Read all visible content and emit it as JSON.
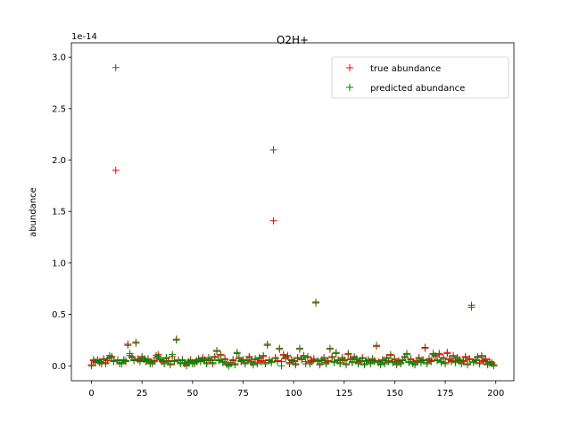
{
  "chart_data": {
    "type": "scatter",
    "title": "O2H+",
    "ylabel": "abundance",
    "y_offset_label": "1e-14",
    "legend_loc": "upper right",
    "xlim": [
      -9.95,
      208.95
    ],
    "xticks": [
      0,
      25,
      50,
      75,
      100,
      125,
      150,
      175,
      200
    ],
    "ylim": [
      -0.145,
      3.14
    ],
    "yticks": [
      {
        "value": 0,
        "label": "0.0"
      },
      {
        "value": 0.5,
        "label": "0.5"
      },
      {
        "value": 1,
        "label": "1.0"
      },
      {
        "value": 1.5,
        "label": "1.5"
      },
      {
        "value": 2,
        "label": "2.0"
      },
      {
        "value": 2.5,
        "label": "2.5"
      },
      {
        "value": 3,
        "label": "3.0"
      }
    ],
    "x": [
      0,
      1,
      2,
      3,
      4,
      5,
      6,
      7,
      8,
      9,
      10,
      11,
      12,
      13,
      14,
      15,
      16,
      17,
      18,
      19,
      20,
      21,
      22,
      23,
      24,
      25,
      26,
      27,
      28,
      29,
      30,
      31,
      32,
      33,
      34,
      35,
      36,
      37,
      38,
      39,
      40,
      41,
      42,
      43,
      44,
      45,
      46,
      47,
      48,
      49,
      50,
      51,
      52,
      53,
      54,
      55,
      56,
      57,
      58,
      59,
      60,
      61,
      62,
      63,
      64,
      65,
      66,
      67,
      68,
      69,
      70,
      71,
      72,
      73,
      74,
      75,
      76,
      77,
      78,
      79,
      80,
      81,
      82,
      83,
      84,
      85,
      86,
      87,
      88,
      89,
      90,
      91,
      92,
      93,
      94,
      95,
      96,
      97,
      98,
      99,
      100,
      101,
      102,
      103,
      104,
      105,
      106,
      107,
      108,
      109,
      110,
      111,
      112,
      113,
      114,
      115,
      116,
      117,
      118,
      119,
      120,
      121,
      122,
      123,
      124,
      125,
      126,
      127,
      128,
      129,
      130,
      131,
      132,
      133,
      134,
      135,
      136,
      137,
      138,
      139,
      140,
      141,
      142,
      143,
      144,
      145,
      146,
      147,
      148,
      149,
      150,
      151,
      152,
      153,
      154,
      155,
      156,
      157,
      158,
      159,
      160,
      161,
      162,
      163,
      164,
      165,
      166,
      167,
      168,
      169,
      170,
      171,
      172,
      173,
      174,
      175,
      176,
      177,
      178,
      179,
      180,
      181,
      182,
      183,
      184,
      185,
      186,
      187,
      188,
      189,
      190,
      191,
      192,
      193,
      194,
      195,
      196,
      197,
      198,
      199
    ],
    "series": [
      {
        "name": "true abundance",
        "color": "#ff0000",
        "values": [
          0.01,
          0.05,
          0.03,
          0.06,
          0.04,
          0.02,
          0.07,
          0.03,
          0.05,
          0.08,
          0.09,
          0.04,
          1.9,
          0.06,
          0.03,
          0.02,
          0.05,
          0.04,
          0.21,
          0.1,
          0.08,
          0.06,
          0.22,
          0.07,
          0.05,
          0.09,
          0.06,
          0.04,
          0.07,
          0.03,
          0.02,
          0.05,
          0.08,
          0.11,
          0.06,
          0.04,
          0.03,
          0.07,
          0.05,
          0.02,
          0.09,
          0.04,
          0.26,
          0.06,
          0.03,
          0.05,
          0.02,
          0.01,
          0.04,
          0.06,
          0.03,
          0.02,
          0.05,
          0.07,
          0.04,
          0.08,
          0.06,
          0.03,
          0.07,
          0.05,
          0.02,
          0.09,
          0.14,
          0.06,
          0.11,
          0.04,
          0.07,
          0.02,
          0.01,
          0.03,
          0.05,
          0.02,
          0.12,
          0.08,
          0.04,
          0.06,
          0.03,
          0.05,
          0.09,
          0.04,
          0.02,
          0.06,
          0.03,
          0.07,
          0.05,
          0.09,
          0.03,
          0.2,
          0.06,
          0.04,
          1.41,
          0.08,
          0.05,
          0.16,
          0.04,
          0.11,
          0.07,
          0.09,
          0.03,
          0.06,
          0.05,
          0.02,
          0.08,
          0.16,
          0.06,
          0.1,
          0.04,
          0.09,
          0.03,
          0.05,
          0.07,
          0.62,
          0.04,
          0.02,
          0.06,
          0.08,
          0.03,
          0.05,
          0.16,
          0.09,
          0.04,
          0.12,
          0.06,
          0.03,
          0.08,
          0.05,
          0.02,
          0.11,
          0.07,
          0.04,
          0.09,
          0.06,
          0.03,
          0.05,
          0.08,
          0.02,
          0.04,
          0.06,
          0.03,
          0.07,
          0.05,
          0.19,
          0.04,
          0.02,
          0.06,
          0.03,
          0.08,
          0.05,
          0.11,
          0.04,
          0.07,
          0.02,
          0.05,
          0.03,
          0.06,
          0.09,
          0.12,
          0.04,
          0.07,
          0.03,
          0.02,
          0.05,
          0.08,
          0.04,
          0.06,
          0.17,
          0.03,
          0.07,
          0.05,
          0.12,
          0.09,
          0.06,
          0.11,
          0.04,
          0.08,
          0.03,
          0.13,
          0.07,
          0.05,
          0.1,
          0.04,
          0.08,
          0.06,
          0.03,
          0.05,
          0.09,
          0.02,
          0.07,
          0.57,
          0.04,
          0.06,
          0.08,
          0.03,
          0.1,
          0.05,
          0.07,
          0.02,
          0.04,
          0.03,
          0.01
        ]
      },
      {
        "name": "predicted abundance",
        "color": "#008000",
        "values": [
          0.0,
          0.06,
          0.04,
          0.05,
          0.03,
          0.03,
          0.06,
          0.02,
          0.07,
          0.1,
          0.08,
          0.05,
          2.9,
          0.05,
          0.02,
          0.03,
          0.06,
          0.05,
          0.2,
          0.12,
          0.09,
          0.05,
          0.23,
          0.06,
          0.04,
          0.08,
          0.07,
          0.05,
          0.06,
          0.02,
          0.03,
          0.04,
          0.1,
          0.09,
          0.07,
          0.05,
          0.02,
          0.08,
          0.04,
          0.01,
          0.11,
          0.05,
          0.25,
          0.05,
          0.02,
          0.06,
          0.03,
          0.0,
          0.03,
          0.05,
          0.02,
          0.03,
          0.04,
          0.06,
          0.05,
          0.07,
          0.05,
          0.02,
          0.08,
          0.06,
          0.03,
          0.08,
          0.15,
          0.05,
          0.1,
          0.03,
          0.06,
          0.01,
          0.0,
          0.02,
          0.06,
          0.01,
          0.13,
          0.07,
          0.05,
          0.05,
          0.02,
          0.06,
          0.08,
          0.03,
          0.01,
          0.07,
          0.02,
          0.08,
          0.04,
          0.1,
          0.02,
          0.21,
          0.05,
          0.03,
          2.1,
          0.07,
          0.04,
          0.17,
          0.0,
          0.1,
          0.08,
          0.1,
          0.02,
          0.05,
          0.04,
          0.01,
          0.07,
          0.17,
          0.07,
          0.09,
          0.02,
          0.08,
          0.02,
          0.04,
          0.06,
          0.61,
          0.05,
          0.01,
          0.05,
          0.07,
          0.02,
          0.04,
          0.17,
          0.08,
          0.03,
          0.13,
          0.05,
          0.02,
          0.07,
          0.06,
          0.01,
          0.12,
          0.06,
          0.03,
          0.08,
          0.07,
          0.02,
          0.04,
          0.07,
          0.01,
          0.05,
          0.05,
          0.02,
          0.06,
          0.04,
          0.2,
          0.03,
          0.01,
          0.05,
          0.02,
          0.07,
          0.04,
          0.1,
          0.03,
          0.06,
          0.01,
          0.04,
          0.02,
          0.05,
          0.08,
          0.11,
          0.03,
          0.06,
          0.02,
          0.01,
          0.04,
          0.07,
          0.03,
          0.05,
          0.18,
          0.02,
          0.06,
          0.04,
          0.11,
          0.1,
          0.05,
          0.12,
          0.03,
          0.07,
          0.02,
          0.12,
          0.06,
          0.04,
          0.09,
          0.03,
          0.07,
          0.05,
          0.02,
          0.04,
          0.08,
          0.01,
          0.06,
          0.59,
          0.03,
          0.05,
          0.09,
          0.02,
          0.09,
          0.04,
          0.06,
          0.01,
          0.03,
          0.02,
          0.0
        ]
      }
    ]
  }
}
